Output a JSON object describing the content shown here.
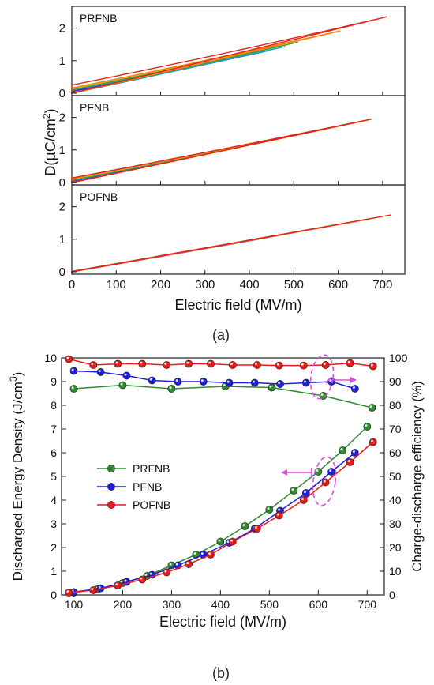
{
  "panel_a": {
    "caption": "(a)",
    "xlabel": "Electric field (MV/m)",
    "ylabel_parts": [
      "D(",
      "μ",
      "C/cm",
      "2",
      ")"
    ],
    "colors": [
      "#5a0fa0",
      "#2f3cc4",
      "#2f9bc8",
      "#2ea043",
      "#d6b600",
      "#ff7f0e",
      "#e0261c"
    ]
  },
  "panel_b": {
    "caption": "(b)",
    "xlabel": "Electric field (MV/m)",
    "ylabel_left_parts": [
      "Discharged Energy Density (J/cm",
      "3",
      ")"
    ],
    "ylabel_right": "Charge-discharge efficiency (%)",
    "annotation_color": "#e04be0"
  },
  "chart_data": [
    {
      "type": "line",
      "subplot": "PRFNB",
      "xlabel": "Electric field (MV/m)",
      "ylabel": "D(μC/cm2)",
      "xlim": [
        0,
        750
      ],
      "ylim": [
        0,
        2.5
      ],
      "xticks": [
        0,
        100,
        200,
        300,
        400,
        500,
        600,
        700
      ],
      "yticks": [
        0,
        1,
        2
      ],
      "label": "PRFNB",
      "series": [
        {
          "color": "#5a0fa0",
          "x": [
            0,
            400
          ],
          "y": [
            0.05,
            1.2
          ],
          "remnant": 0.05
        },
        {
          "color": "#2f3cc4",
          "x": [
            0,
            440
          ],
          "y": [
            0.07,
            1.3
          ],
          "remnant": 0.07
        },
        {
          "color": "#2f9bc8",
          "x": [
            0,
            480
          ],
          "y": [
            0.09,
            1.43
          ],
          "remnant": 0.09
        },
        {
          "color": "#2ea043",
          "x": [
            0,
            510
          ],
          "y": [
            0.11,
            1.57
          ],
          "remnant": 0.11
        },
        {
          "color": "#d6b600",
          "x": [
            0,
            600
          ],
          "y": [
            0.13,
            1.9
          ],
          "remnant": 0.13
        },
        {
          "color": "#ff7f0e",
          "x": [
            0,
            605
          ],
          "y": [
            0.16,
            1.92
          ],
          "remnant": 0.16
        },
        {
          "color": "#e0261c",
          "x": [
            0,
            710
          ],
          "y": [
            0.25,
            2.35
          ],
          "remnant": 0.25
        }
      ]
    },
    {
      "type": "line",
      "subplot": "PFNB",
      "xlabel": "Electric field (MV/m)",
      "ylabel": "D(μC/cm2)",
      "xlim": [
        0,
        750
      ],
      "ylim": [
        0,
        2.5
      ],
      "xticks": [
        0,
        100,
        200,
        300,
        400,
        500,
        600,
        700
      ],
      "yticks": [
        0,
        1,
        2
      ],
      "label": "PFNB",
      "series": [
        {
          "color": "#5a0fa0",
          "x": [
            0,
            520
          ],
          "y": [
            0.04,
            1.5
          ],
          "remnant": 0.04
        },
        {
          "color": "#2f3cc4",
          "x": [
            0,
            560
          ],
          "y": [
            0.05,
            1.62
          ],
          "remnant": 0.05
        },
        {
          "color": "#2f9bc8",
          "x": [
            0,
            580
          ],
          "y": [
            0.06,
            1.68
          ],
          "remnant": 0.06
        },
        {
          "color": "#2ea043",
          "x": [
            0,
            600
          ],
          "y": [
            0.08,
            1.73
          ],
          "remnant": 0.08
        },
        {
          "color": "#d6b600",
          "x": [
            0,
            660
          ],
          "y": [
            0.1,
            1.9
          ],
          "remnant": 0.1
        },
        {
          "color": "#ff7f0e",
          "x": [
            0,
            670
          ],
          "y": [
            0.12,
            1.93
          ],
          "remnant": 0.12
        },
        {
          "color": "#e0261c",
          "x": [
            0,
            675
          ],
          "y": [
            0.14,
            1.95
          ],
          "remnant": 0.14
        }
      ]
    },
    {
      "type": "line",
      "subplot": "POFNB",
      "xlabel": "Electric field (MV/m)",
      "ylabel": "D(μC/cm2)",
      "xlim": [
        0,
        750
      ],
      "ylim": [
        0,
        2.5
      ],
      "xticks": [
        0,
        100,
        200,
        300,
        400,
        500,
        600,
        700
      ],
      "yticks": [
        0,
        1,
        2
      ],
      "label": "POFNB",
      "series": [
        {
          "color": "#5a0fa0",
          "x": [
            0,
            420
          ],
          "y": [
            0.01,
            1.0
          ],
          "remnant": 0.01
        },
        {
          "color": "#2f3cc4",
          "x": [
            0,
            480
          ],
          "y": [
            0.01,
            1.15
          ],
          "remnant": 0.01
        },
        {
          "color": "#2f9bc8",
          "x": [
            0,
            520
          ],
          "y": [
            0.01,
            1.25
          ],
          "remnant": 0.01
        },
        {
          "color": "#2ea043",
          "x": [
            0,
            560
          ],
          "y": [
            0.01,
            1.35
          ],
          "remnant": 0.01
        },
        {
          "color": "#d6b600",
          "x": [
            0,
            620
          ],
          "y": [
            0.01,
            1.5
          ],
          "remnant": 0.01
        },
        {
          "color": "#ff7f0e",
          "x": [
            0,
            670
          ],
          "y": [
            0.01,
            1.62
          ],
          "remnant": 0.01
        },
        {
          "color": "#e0261c",
          "x": [
            0,
            720
          ],
          "y": [
            0.01,
            1.75
          ],
          "remnant": 0.01
        }
      ]
    },
    {
      "type": "line",
      "subplot": "b",
      "xlabel": "Electric field (MV/m)",
      "ylabel": "Discharged Energy Density (J/cm3)",
      "ylabel_right": "Charge-discharge efficiency (%)",
      "xlim": [
        75,
        735
      ],
      "ylim": [
        0,
        10
      ],
      "ylim_right": [
        0,
        100
      ],
      "xticks": [
        100,
        200,
        300,
        400,
        500,
        600,
        700
      ],
      "yticks": [
        0,
        1,
        2,
        3,
        4,
        5,
        6,
        7,
        8,
        9,
        10
      ],
      "yticks_right": [
        0,
        10,
        20,
        30,
        40,
        50,
        60,
        70,
        80,
        90,
        100
      ],
      "legend_position": "center-left",
      "series": [
        {
          "name": "PRFNB",
          "color": "#2e8b2e",
          "axis": "left",
          "x": [
            100,
            150,
            200,
            250,
            300,
            350,
            400,
            450,
            500,
            550,
            600,
            650,
            700
          ],
          "y": [
            0.1,
            0.25,
            0.5,
            0.8,
            1.25,
            1.7,
            2.25,
            2.9,
            3.6,
            4.4,
            5.2,
            6.1,
            7.1
          ]
        },
        {
          "name": "PFNB",
          "color": "#1f1fe0",
          "axis": "left",
          "x": [
            100,
            155,
            208,
            260,
            313,
            365,
            418,
            470,
            522,
            575,
            627,
            675
          ],
          "y": [
            0.12,
            0.28,
            0.55,
            0.85,
            1.25,
            1.7,
            2.2,
            2.8,
            3.55,
            4.3,
            5.2,
            6.0
          ]
        },
        {
          "name": "POFNB",
          "color": "#e81c1c",
          "axis": "left",
          "x": [
            90,
            140,
            190,
            240,
            290,
            335,
            380,
            425,
            475,
            520,
            570,
            615,
            665,
            712
          ],
          "y": [
            0.1,
            0.2,
            0.4,
            0.65,
            0.95,
            1.3,
            1.7,
            2.25,
            2.8,
            3.35,
            4.0,
            4.75,
            5.6,
            6.45
          ]
        },
        {
          "name": "PRFNB",
          "color": "#2e8b2e",
          "axis": "right",
          "x": [
            100,
            200,
            300,
            410,
            505,
            610,
            710
          ],
          "y": [
            87,
            88.5,
            87,
            88,
            87.5,
            84,
            79
          ]
        },
        {
          "name": "PFNB",
          "color": "#1f1fe0",
          "axis": "right",
          "x": [
            100,
            155,
            208,
            260,
            313,
            365,
            418,
            470,
            522,
            575,
            627,
            675
          ],
          "y": [
            94.5,
            94,
            92.5,
            90.5,
            90,
            90,
            89.5,
            89.5,
            89,
            89.5,
            90,
            87
          ]
        },
        {
          "name": "POFNB",
          "color": "#e81c1c",
          "axis": "right",
          "x": [
            90,
            140,
            190,
            240,
            290,
            335,
            380,
            425,
            475,
            520,
            570,
            615,
            665,
            712
          ],
          "y": [
            99.5,
            97,
            97.5,
            97.5,
            97,
            97.5,
            97.5,
            97,
            97,
            96.8,
            96.8,
            97,
            97.8,
            96.5
          ]
        }
      ]
    }
  ]
}
